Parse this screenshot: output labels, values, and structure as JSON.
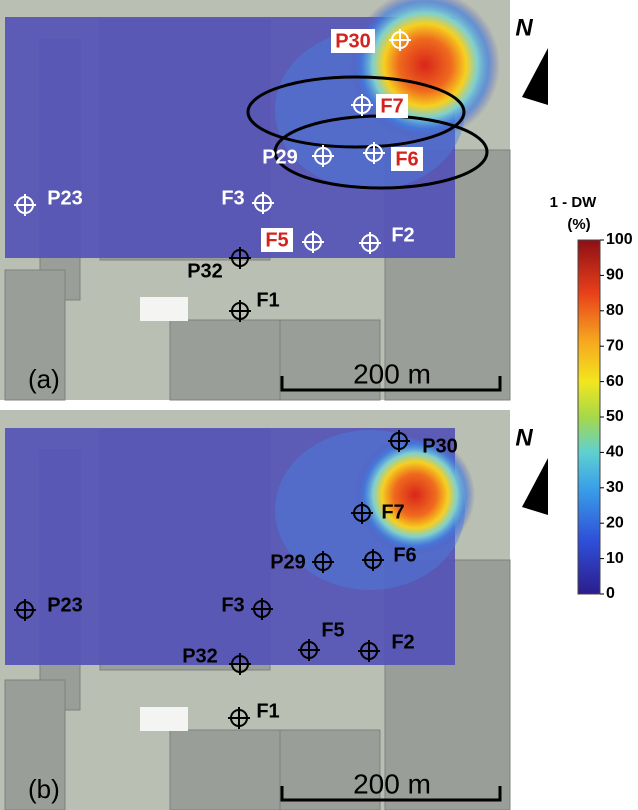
{
  "panels": [
    {
      "label": "(a)",
      "scale_bar": "200 m",
      "north": "N",
      "wells": [
        {
          "label": "P30"
        },
        {
          "label": "F7"
        },
        {
          "label": "F6"
        },
        {
          "label": "P29"
        },
        {
          "label": "P23"
        },
        {
          "label": "F3"
        },
        {
          "label": "F5"
        },
        {
          "label": "F2"
        },
        {
          "label": "P32"
        },
        {
          "label": "F1"
        }
      ]
    },
    {
      "label": "(b)",
      "scale_bar": "200 m",
      "north": "N",
      "wells": [
        {
          "label": "P30"
        },
        {
          "label": "F7"
        },
        {
          "label": "F6"
        },
        {
          "label": "P29"
        },
        {
          "label": "P23"
        },
        {
          "label": "F3"
        },
        {
          "label": "F5"
        },
        {
          "label": "F2"
        },
        {
          "label": "P32"
        },
        {
          "label": "F1"
        }
      ]
    }
  ],
  "colorbar": {
    "title": "1 - DW",
    "unit": "(%)",
    "ticks": [
      100,
      90,
      80,
      70,
      60,
      50,
      40,
      30,
      20,
      10,
      0
    ]
  }
}
